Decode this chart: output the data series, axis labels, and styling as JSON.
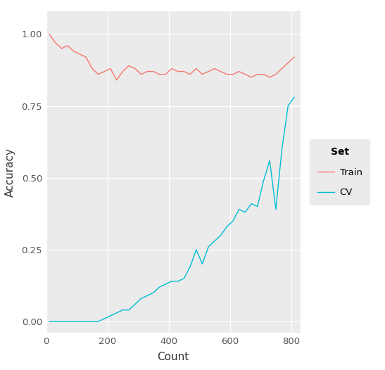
{
  "title": "",
  "xlabel": "Count",
  "ylabel": "Accuracy",
  "legend_title": "Set",
  "legend_labels": [
    "Train",
    "CV"
  ],
  "train_color": "#F8766D",
  "cv_color": "#00BCD4",
  "plot_bg_color": "#EBEBEB",
  "fig_bg_color": "#FFFFFF",
  "legend_bg_color": "#EBEBEB",
  "grid_color": "#FFFFFF",
  "xlim": [
    0,
    830
  ],
  "ylim": [
    -0.04,
    1.08
  ],
  "xticks": [
    0,
    200,
    400,
    600,
    800
  ],
  "yticks": [
    0.0,
    0.25,
    0.5,
    0.75,
    1.0
  ],
  "train_x": [
    10,
    30,
    50,
    70,
    90,
    110,
    130,
    150,
    170,
    190,
    210,
    230,
    250,
    270,
    290,
    310,
    330,
    350,
    370,
    390,
    410,
    430,
    450,
    470,
    490,
    510,
    530,
    550,
    570,
    590,
    610,
    630,
    650,
    670,
    690,
    710,
    730,
    750,
    770,
    790,
    810
  ],
  "train_y": [
    1.0,
    0.97,
    0.95,
    0.96,
    0.94,
    0.93,
    0.92,
    0.88,
    0.86,
    0.87,
    0.88,
    0.84,
    0.87,
    0.89,
    0.88,
    0.86,
    0.87,
    0.87,
    0.86,
    0.86,
    0.88,
    0.87,
    0.87,
    0.86,
    0.88,
    0.86,
    0.87,
    0.88,
    0.87,
    0.86,
    0.86,
    0.87,
    0.86,
    0.85,
    0.86,
    0.86,
    0.85,
    0.86,
    0.88,
    0.9,
    0.92
  ],
  "cv_x": [
    10,
    30,
    50,
    70,
    90,
    110,
    130,
    150,
    170,
    190,
    210,
    230,
    250,
    270,
    290,
    310,
    330,
    350,
    370,
    390,
    410,
    430,
    450,
    470,
    490,
    510,
    530,
    550,
    570,
    590,
    610,
    630,
    650,
    670,
    690,
    710,
    730,
    750,
    770,
    790,
    810
  ],
  "cv_y": [
    0.0,
    0.0,
    0.0,
    0.0,
    0.0,
    0.0,
    0.0,
    0.0,
    0.0,
    0.01,
    0.02,
    0.03,
    0.04,
    0.04,
    0.06,
    0.08,
    0.09,
    0.1,
    0.12,
    0.13,
    0.14,
    0.14,
    0.15,
    0.19,
    0.25,
    0.2,
    0.26,
    0.28,
    0.3,
    0.33,
    0.35,
    0.39,
    0.38,
    0.41,
    0.4,
    0.49,
    0.56,
    0.39,
    0.6,
    0.75,
    0.78
  ]
}
